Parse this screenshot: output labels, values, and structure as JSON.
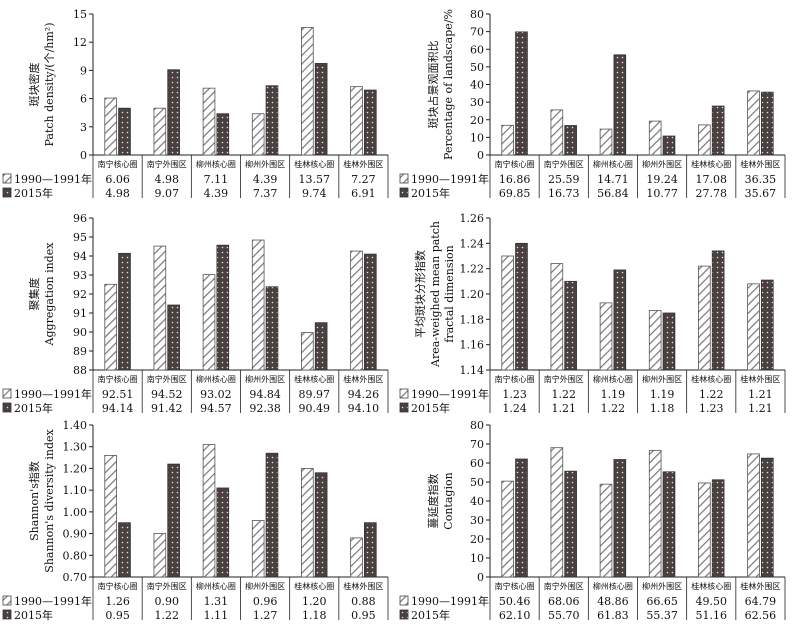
{
  "legend": {
    "series1": "1990—1991年",
    "series2": "2015年"
  },
  "colors": {
    "series1_stroke": "#555555",
    "series2_fill": "#4a4040",
    "axis": "#222222"
  },
  "chart_data": [
    {
      "type": "bar",
      "ylabel_cn": "斑块密度",
      "ylabel_en": "Patch density/(个/hm²)",
      "ylim": [
        0,
        15
      ],
      "yticks": [
        "0",
        "3",
        "6",
        "9",
        "12",
        "15"
      ],
      "categories": [
        "南宁核心圈",
        "南宁外围区",
        "柳州核心圈",
        "柳州外围区",
        "桂林核心圈",
        "桂林外围区"
      ],
      "series": [
        {
          "name": "1990—1991年",
          "values": [
            6.06,
            4.98,
            7.11,
            4.39,
            13.57,
            7.27
          ],
          "labels": [
            "6.06",
            "4.98",
            "7.11",
            "4.39",
            "13.57",
            "7.27"
          ]
        },
        {
          "name": "2015年",
          "values": [
            4.98,
            9.07,
            4.39,
            7.37,
            9.74,
            6.91
          ],
          "labels": [
            "4.98",
            "9.07",
            "4.39",
            "7.37",
            "9.74",
            "6.91"
          ]
        }
      ]
    },
    {
      "type": "bar",
      "ylabel_cn": "斑块占景观面积比",
      "ylabel_en": "Percentage of landscape/%",
      "ylim": [
        0,
        80
      ],
      "yticks": [
        "0",
        "10",
        "20",
        "30",
        "40",
        "50",
        "60",
        "70",
        "80"
      ],
      "categories": [
        "南宁核心圈",
        "南宁外围区",
        "柳州核心圈",
        "柳州外围区",
        "桂林核心圈",
        "桂林外围区"
      ],
      "series": [
        {
          "name": "1990—1991年",
          "values": [
            16.86,
            25.59,
            14.71,
            19.24,
            17.08,
            36.35
          ],
          "labels": [
            "16.86",
            "25.59",
            "14.71",
            "19.24",
            "17.08",
            "36.35"
          ]
        },
        {
          "name": "2015年",
          "values": [
            69.85,
            16.73,
            56.84,
            10.77,
            27.78,
            35.67
          ],
          "labels": [
            "69.85",
            "16.73",
            "56.84",
            "10.77",
            "27.78",
            "35.67"
          ]
        }
      ]
    },
    {
      "type": "bar",
      "ylabel_cn": "聚集度",
      "ylabel_en": "Aggregation index",
      "ylim": [
        88,
        96
      ],
      "yticks": [
        "88",
        "89",
        "90",
        "91",
        "92",
        "93",
        "94",
        "95",
        "96"
      ],
      "categories": [
        "南宁核心圈",
        "南宁外围区",
        "柳州核心圈",
        "柳州外围区",
        "桂林核心圈",
        "桂林外围区"
      ],
      "series": [
        {
          "name": "1990—1991年",
          "values": [
            92.51,
            94.52,
            93.02,
            94.84,
            89.97,
            94.26
          ],
          "labels": [
            "92.51",
            "94.52",
            "93.02",
            "94.84",
            "89.97",
            "94.26"
          ]
        },
        {
          "name": "2015年",
          "values": [
            94.14,
            91.42,
            94.57,
            92.38,
            90.49,
            94.1
          ],
          "labels": [
            "94.14",
            "91.42",
            "94.57",
            "92.38",
            "90.49",
            "94.10"
          ]
        }
      ]
    },
    {
      "type": "bar",
      "ylabel_cn": "平均斑块分形指数",
      "ylabel_en": "Area-weighed mean patch",
      "ylabel_en2": "fractal dimension",
      "ylim": [
        1.14,
        1.26
      ],
      "yticks": [
        "1.14",
        "1.16",
        "1.18",
        "1.20",
        "1.22",
        "1.24",
        "1.26"
      ],
      "categories": [
        "南宁核心圈",
        "南宁外围区",
        "柳州核心圈",
        "柳州外围区",
        "桂林核心圈",
        "桂林外围区"
      ],
      "series": [
        {
          "name": "1990—1991年",
          "values": [
            1.23,
            1.224,
            1.193,
            1.187,
            1.222,
            1.208
          ],
          "labels": [
            "1.23",
            "1.22",
            "1.19",
            "1.19",
            "1.22",
            "1.21"
          ]
        },
        {
          "name": "2015年",
          "values": [
            1.24,
            1.21,
            1.219,
            1.185,
            1.234,
            1.211
          ],
          "labels": [
            "1.24",
            "1.21",
            "1.22",
            "1.18",
            "1.23",
            "1.21"
          ]
        }
      ]
    },
    {
      "type": "bar",
      "ylabel_cn": "Shannon's指数",
      "ylabel_en": "Shannon's diversity index",
      "ylim": [
        0.7,
        1.4
      ],
      "yticks": [
        "0.70",
        "0.80",
        "0.90",
        "1.00",
        "1.10",
        "1.20",
        "1.30",
        "1.40"
      ],
      "categories": [
        "南宁核心圈",
        "南宁外围区",
        "柳州核心圈",
        "柳州外围区",
        "桂林核心圈",
        "桂林外围区"
      ],
      "series": [
        {
          "name": "1990—1991年",
          "values": [
            1.26,
            0.9,
            1.31,
            0.96,
            1.2,
            0.88
          ],
          "labels": [
            "1.26",
            "0.90",
            "1.31",
            "0.96",
            "1.20",
            "0.88"
          ]
        },
        {
          "name": "2015年",
          "values": [
            0.95,
            1.22,
            1.11,
            1.27,
            1.18,
            0.95
          ],
          "labels": [
            "0.95",
            "1.22",
            "1.11",
            "1.27",
            "1.18",
            "0.95"
          ]
        }
      ]
    },
    {
      "type": "bar",
      "ylabel_cn": "蔓延度指数",
      "ylabel_en": "Contagion",
      "ylim": [
        0,
        80
      ],
      "yticks": [
        "0",
        "10",
        "20",
        "30",
        "40",
        "50",
        "60",
        "70",
        "80"
      ],
      "categories": [
        "南宁核心圈",
        "南宁外围区",
        "柳州核心圈",
        "柳州外围区",
        "桂林核心圈",
        "桂林外围区"
      ],
      "series": [
        {
          "name": "1990—1991年",
          "values": [
            50.46,
            68.06,
            48.86,
            66.65,
            49.5,
            64.79
          ],
          "labels": [
            "50.46",
            "68.06",
            "48.86",
            "66.65",
            "49.50",
            "64.79"
          ]
        },
        {
          "name": "2015年",
          "values": [
            62.1,
            55.7,
            61.83,
            55.37,
            51.16,
            62.56
          ],
          "labels": [
            "62.10",
            "55.70",
            "61.83",
            "55.37",
            "51.16",
            "62.56"
          ]
        }
      ]
    }
  ]
}
